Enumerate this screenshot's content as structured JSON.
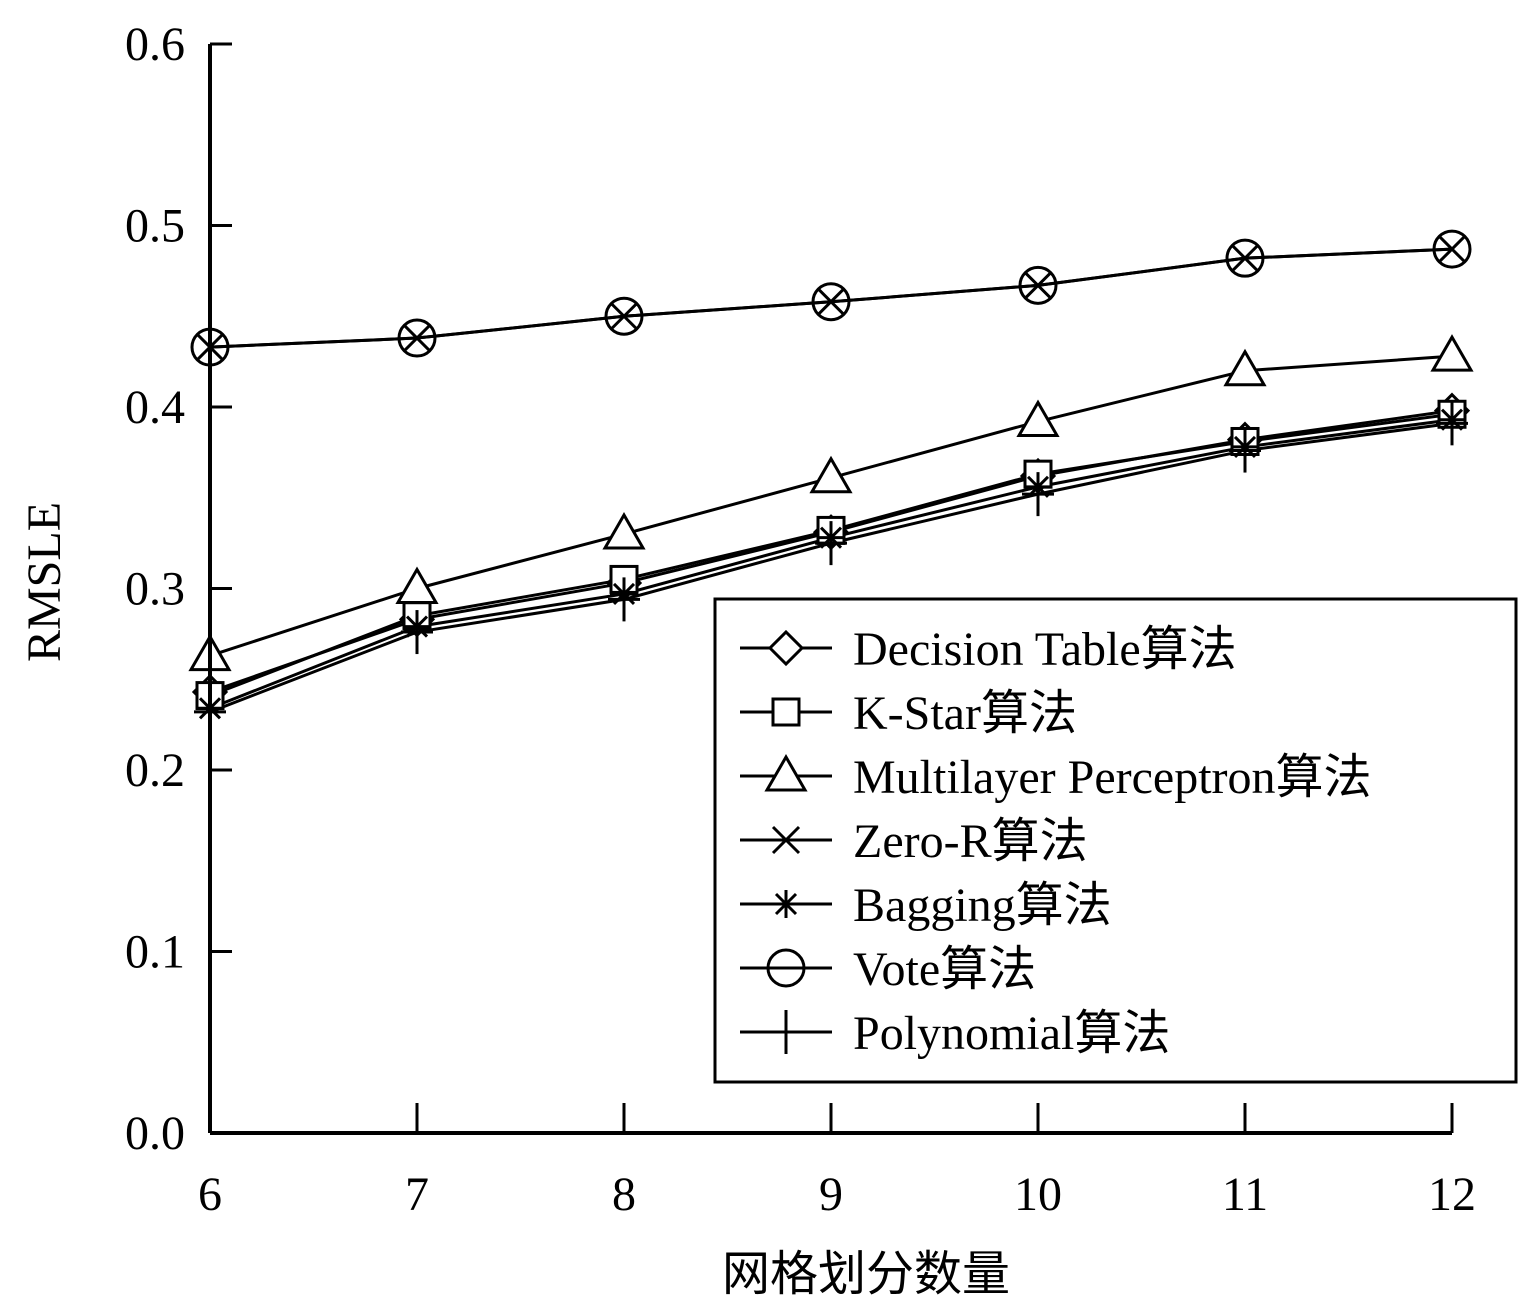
{
  "chart_data": {
    "type": "line",
    "title": "",
    "xlabel": "网格划分数量",
    "ylabel": "RMSLE",
    "x": [
      6,
      7,
      8,
      9,
      10,
      11,
      12
    ],
    "xticks": [
      "6",
      "7",
      "8",
      "9",
      "10",
      "11",
      "12"
    ],
    "yticks": [
      "0.0",
      "0.1",
      "0.2",
      "0.3",
      "0.4",
      "0.5",
      "0.6"
    ],
    "ylim": [
      0,
      0.6
    ],
    "xlim": [
      6,
      12
    ],
    "grid": false,
    "legend_position": "bottom-right",
    "series": [
      {
        "name": "Decision Table算法",
        "marker": "diamond",
        "values": [
          0.243,
          0.283,
          0.303,
          0.331,
          0.362,
          0.382,
          0.398
        ]
      },
      {
        "name": "K-Star算法",
        "marker": "square",
        "values": [
          0.241,
          0.285,
          0.305,
          0.332,
          0.363,
          0.381,
          0.396
        ]
      },
      {
        "name": "Multilayer Perceptron算法",
        "marker": "triangle",
        "values": [
          0.263,
          0.3,
          0.33,
          0.361,
          0.392,
          0.42,
          0.428
        ]
      },
      {
        "name": "Zero-R算法",
        "marker": "x",
        "values": [
          0.433,
          0.438,
          0.45,
          0.458,
          0.467,
          0.482,
          0.487
        ]
      },
      {
        "name": "Bagging算法",
        "marker": "asterisk",
        "values": [
          0.234,
          0.279,
          0.297,
          0.328,
          0.356,
          0.378,
          0.393
        ]
      },
      {
        "name": "Vote算法",
        "marker": "circle",
        "values": [
          0.433,
          0.438,
          0.45,
          0.458,
          0.467,
          0.482,
          0.487
        ]
      },
      {
        "name": "Polynomial算法",
        "marker": "plus",
        "values": [
          0.232,
          0.276,
          0.294,
          0.325,
          0.352,
          0.376,
          0.391
        ]
      }
    ]
  }
}
